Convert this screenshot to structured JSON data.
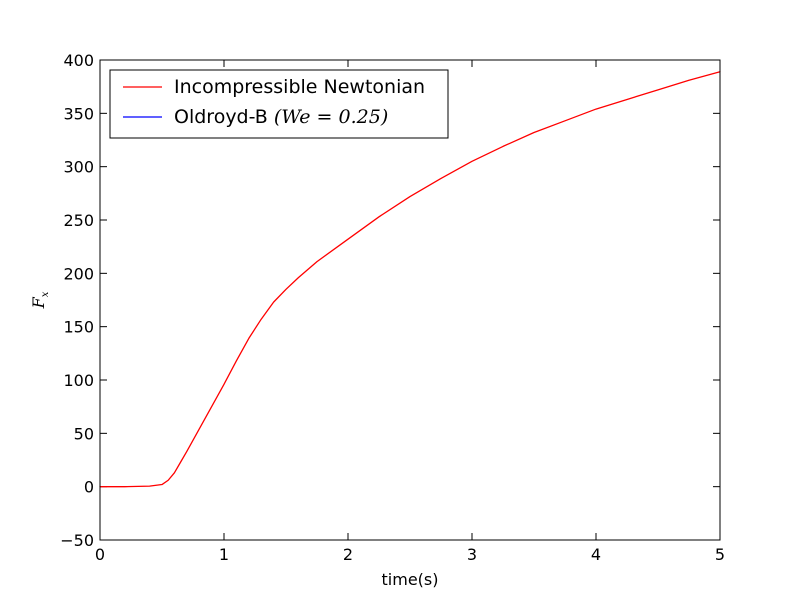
{
  "chart_data": {
    "type": "line",
    "xlabel": "time(s)",
    "ylabel": "F_x",
    "xlim": [
      0,
      5
    ],
    "ylim": [
      -50,
      400
    ],
    "x_ticks": [
      0,
      1,
      2,
      3,
      4,
      5
    ],
    "y_ticks": [
      -50,
      0,
      50,
      100,
      150,
      200,
      250,
      300,
      350,
      400
    ],
    "x_tick_labels": [
      "0",
      "1",
      "2",
      "3",
      "4",
      "5"
    ],
    "y_tick_labels": [
      "−50",
      "0",
      "50",
      "100",
      "150",
      "200",
      "250",
      "300",
      "350",
      "400"
    ],
    "grid": false,
    "legend_position": "top-left",
    "series": [
      {
        "name": "Incompressible Newtonian",
        "color": "#ff0000",
        "x": [
          0,
          0.2,
          0.4,
          0.5,
          0.55,
          0.6,
          0.65,
          0.7,
          0.8,
          0.9,
          1.0,
          1.1,
          1.2,
          1.3,
          1.4,
          1.5,
          1.6,
          1.75,
          2.0,
          2.25,
          2.5,
          2.75,
          3.0,
          3.25,
          3.5,
          3.75,
          4.0,
          4.25,
          4.5,
          4.75,
          5.0
        ],
        "y": [
          0,
          0,
          0.5,
          2,
          6,
          13,
          23,
          33,
          54,
          75,
          96,
          118,
          139,
          157,
          173,
          185,
          196,
          211,
          232,
          253,
          272,
          289,
          305,
          319,
          332,
          343,
          354,
          363,
          372,
          381,
          389
        ]
      },
      {
        "name": "Oldroyd-B ",
        "name_math": "(We = 0.25)",
        "color": "#0000ff",
        "x": [],
        "y": []
      }
    ]
  }
}
